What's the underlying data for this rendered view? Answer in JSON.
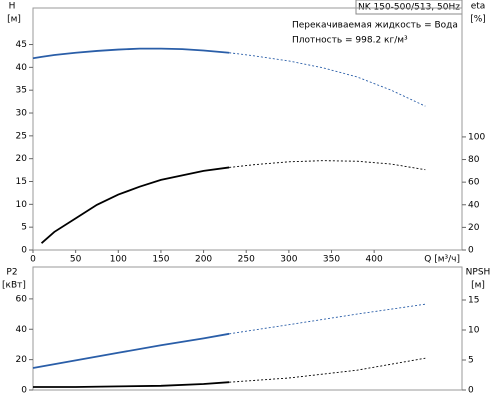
{
  "chart_data": [
    {
      "type": "line",
      "title": "NK 150-500/513, 50Hz",
      "annotations": [
        "Перекачиваемая жидкость = Вода",
        "Плотность = 998.2 кг/м³"
      ],
      "ylabel": "H",
      "yunit": "[м]",
      "y2label": "eta",
      "y2unit": "[%]",
      "xlabel": "Q [м³/ч]",
      "x": [
        0,
        10,
        25,
        50,
        75,
        100,
        125,
        150,
        175,
        200,
        230,
        260,
        300,
        340,
        380,
        420,
        460
      ],
      "xlim": [
        0,
        503
      ],
      "xticks": [
        0,
        50,
        100,
        150,
        200,
        250,
        300,
        350,
        400
      ],
      "ylim": [
        0,
        53
      ],
      "yticks": [
        0,
        5,
        10,
        15,
        20,
        25,
        30,
        35,
        40,
        45
      ],
      "y2lim": [
        0,
        214
      ],
      "y2ticks": [
        0,
        20,
        40,
        60,
        80,
        100
      ],
      "series": [
        {
          "color": "#2a5ea8",
          "style": "solid",
          "values": [
            42,
            42.3,
            42.7,
            43.2,
            43.6,
            43.9,
            44.1,
            44.1,
            44,
            43.7,
            43.2,
            null,
            null,
            null,
            null,
            null,
            null
          ]
        },
        {
          "color": "#2a5ea8",
          "style": "dashed",
          "values": [
            null,
            null,
            null,
            null,
            null,
            null,
            null,
            null,
            null,
            null,
            43.2,
            42.5,
            41.4,
            39.9,
            37.9,
            35,
            31.5
          ]
        },
        {
          "color": "#000000",
          "style": "solid",
          "axis": "y2",
          "values": [
            null,
            6,
            16,
            28,
            40,
            49,
            56,
            62,
            66,
            70,
            73,
            null,
            null,
            null,
            null,
            null,
            null
          ]
        },
        {
          "color": "#000000",
          "style": "dashed",
          "axis": "y2",
          "values": [
            null,
            null,
            null,
            null,
            null,
            null,
            null,
            null,
            null,
            null,
            73,
            75.5,
            78,
            79,
            78.5,
            76,
            71
          ]
        }
      ]
    },
    {
      "type": "line",
      "ylabel": "P2",
      "yunit": "[кВт]",
      "y2label": "NPSH",
      "y2unit": "[м]",
      "x": [
        0,
        50,
        100,
        150,
        200,
        230,
        300,
        380,
        460
      ],
      "xlim": [
        0,
        503
      ],
      "ylim": [
        0,
        81
      ],
      "yticks": [
        0,
        20,
        40,
        60
      ],
      "y2lim": [
        0,
        20.5
      ],
      "y2ticks": [
        0,
        5,
        10,
        15
      ],
      "series": [
        {
          "color": "#2a5ea8",
          "style": "solid",
          "values": [
            14.5,
            19.5,
            24.5,
            29.5,
            34,
            37,
            null,
            null,
            null
          ]
        },
        {
          "color": "#2a5ea8",
          "style": "dashed",
          "values": [
            null,
            null,
            null,
            null,
            null,
            37,
            43,
            50,
            56.5
          ]
        },
        {
          "color": "#000000",
          "style": "solid",
          "axis": "y2",
          "values": [
            0.5,
            0.5,
            0.6,
            0.7,
            1.0,
            1.3,
            null,
            null,
            null
          ]
        },
        {
          "color": "#000000",
          "style": "dashed",
          "axis": "y2",
          "values": [
            null,
            null,
            null,
            null,
            null,
            1.3,
            2,
            3.3,
            5.3
          ]
        }
      ]
    }
  ]
}
